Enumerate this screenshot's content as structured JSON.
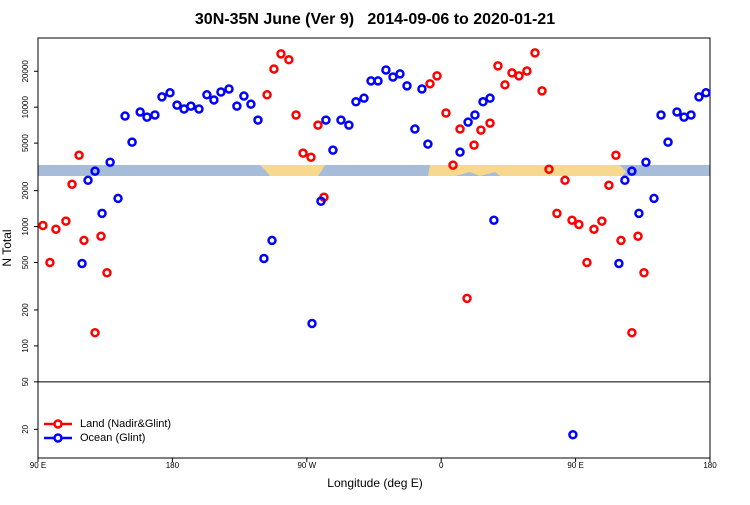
{
  "chart_data": {
    "type": "scatter",
    "title": "30N-35N June (Ver 9)   2014-09-06 to 2020-01-21",
    "x_label": "Longitude (deg E)",
    "y_label": "N Total",
    "xlim": [
      90,
      540
    ],
    "xticks": [
      {
        "value": 90,
        "label": "90 E"
      },
      180,
      {
        "value": 270,
        "label": "90 W"
      },
      {
        "value": 360,
        "label": "0"
      },
      {
        "value": 450,
        "label": "90 E"
      },
      {
        "value": 540,
        "label": "180"
      }
    ],
    "ylim": [
      11.5,
      38000
    ],
    "yticks": [
      20,
      50,
      100,
      200,
      500,
      1000,
      2000,
      5000,
      10000,
      20000
    ],
    "log_y": true,
    "hline": 50,
    "legend": "bottom-left",
    "series": [
      {
        "name": "Land (Nadir&Glint)",
        "color": "#ff0000",
        "x": [
          93.3,
          98,
          102,
          108.7,
          112.8,
          117.5,
          120.8,
          128.2,
          132.2,
          136.2,
          243.4,
          248,
          252.7,
          258,
          262.8,
          267.5,
          272.8,
          277.5,
          281.5,
          352.5,
          357.2,
          363.2,
          367.9,
          372.6,
          377.3,
          382,
          386.6,
          392.7,
          398,
          402.7,
          407.4,
          412.1,
          417.4,
          422.8,
          427.5,
          432.2,
          437.5,
          442.9,
          447.6,
          452.2,
          457.6,
          462.3,
          467.6,
          472.3,
          477,
          480.4,
          487.7,
          491.8,
          495.8
        ],
        "values": [
          1020,
          500,
          950,
          1110,
          2260,
          3960,
          765,
          129,
          830,
          410,
          12700,
          20900,
          28000,
          25000,
          8600,
          4120,
          3810,
          7080,
          1760,
          15700,
          18300,
          8940,
          3270,
          6560,
          250,
          4810,
          6430,
          7360,
          22200,
          15400,
          19400,
          18300,
          20100,
          28500,
          13700,
          3020,
          1290,
          2440,
          1130,
          1040,
          500,
          950,
          1110,
          2220,
          3960,
          765,
          129,
          830,
          410
        ]
      },
      {
        "name": "Ocean (Glint)",
        "color": "#0000ff",
        "x": [
          119.5,
          123.5,
          128.2,
          132.9,
          138.3,
          143.6,
          148.3,
          153,
          158.4,
          163,
          168.3,
          173,
          178.4,
          183.1,
          187.8,
          192.4,
          197.8,
          203.1,
          207.8,
          212.5,
          217.9,
          223.2,
          227.9,
          232.6,
          237.3,
          241.3,
          246.7,
          273.5,
          279.5,
          282.8,
          287.5,
          292.9,
          298.2,
          302.9,
          308.3,
          313,
          317.7,
          323,
          327.7,
          332.4,
          337.1,
          342.4,
          347.1,
          351.1,
          372.6,
          378,
          382.6,
          388,
          392.7,
          395.3,
          448.2,
          479,
          483,
          487.7,
          492.4,
          497.1,
          502.5,
          507.2,
          511.9,
          517.9,
          522.6,
          527.3,
          532.6,
          537.3
        ],
        "values": [
          490,
          2440,
          2910,
          1290,
          3460,
          1720,
          8430,
          5100,
          9120,
          8260,
          8600,
          12200,
          13200,
          10400,
          9660,
          10200,
          9660,
          12700,
          11500,
          13400,
          14200,
          10200,
          12400,
          10600,
          7800,
          540,
          765,
          154,
          1630,
          7800,
          4370,
          7800,
          7080,
          11100,
          11900,
          16600,
          16600,
          20500,
          17900,
          19000,
          15100,
          6560,
          14200,
          4910,
          4200,
          7500,
          8600,
          11100,
          11900,
          1130,
          18,
          490,
          2440,
          2910,
          1290,
          3460,
          1720,
          8600,
          5100,
          9120,
          8260,
          8600,
          12200,
          13200
        ]
      }
    ]
  }
}
